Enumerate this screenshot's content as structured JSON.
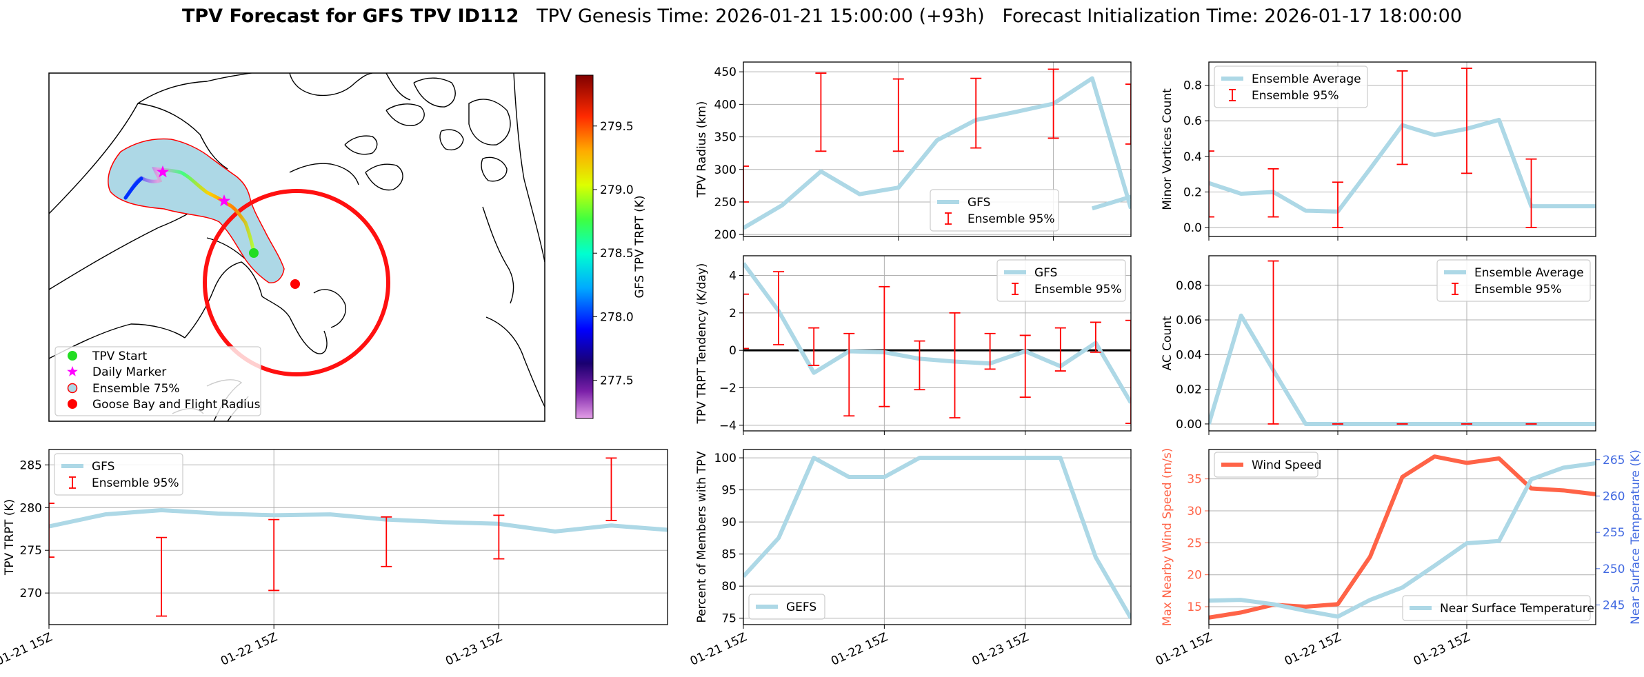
{
  "title": {
    "main": "TPV Forecast for GFS TPV ID112",
    "genesis": "TPV Genesis Time: 2026-01-21 15:00:00 (+93h)",
    "init": "Forecast Initialization Time: 2026-01-17 18:00:00"
  },
  "colors": {
    "gfs": "#add8e6",
    "ensemble": "#ff0000",
    "wind": "#ff6347",
    "temp_axis": "#4169e1",
    "ensemble_area": "#add8e6"
  },
  "map": {
    "colorbar": {
      "label": "GFS TPV TRPT (K)",
      "ticks": [
        "277.5",
        "278.0",
        "278.5",
        "279.0",
        "279.5"
      ],
      "range": [
        277.2,
        279.9
      ]
    },
    "legend": [
      {
        "label": "TPV Start",
        "icon": "green-circle"
      },
      {
        "label": "Daily Marker",
        "icon": "magenta-star"
      },
      {
        "label": "Ensemble 75%",
        "icon": "lightblue-circle-red-edge"
      },
      {
        "label": "Goose Bay and Flight Radius",
        "icon": "red-circle"
      }
    ]
  },
  "time_ticks": [
    "01-21 15Z",
    "01-22 15Z",
    "01-23 15Z"
  ],
  "chart_data": [
    {
      "id": "radius",
      "type": "line",
      "ylabel": "TPV Radius (km)",
      "ylim": [
        197,
        465
      ],
      "yticks": [
        "200",
        "250",
        "300",
        "350",
        "400",
        "450"
      ],
      "xlim": [
        0,
        60
      ],
      "x": [
        0,
        6,
        12,
        18,
        24,
        30,
        36,
        42,
        48,
        54,
        60
      ],
      "series": [
        {
          "name": "GFS",
          "values": [
            210,
            245,
            297,
            262,
            272,
            345,
            376,
            388,
            401,
            440,
            240
          ]
        }
      ],
      "extra_line": {
        "x": [
          54,
          60
        ],
        "values": [
          240,
          258
        ]
      },
      "errorbars": [
        {
          "x": 0,
          "lo": 250,
          "hi": 305
        },
        {
          "x": 12,
          "lo": 328,
          "hi": 448
        },
        {
          "x": 24,
          "lo": 328,
          "hi": 439
        },
        {
          "x": 36,
          "lo": 333,
          "hi": 440
        },
        {
          "x": 48,
          "lo": 348,
          "hi": 454
        },
        {
          "x": 60,
          "lo": 339,
          "hi": 431
        }
      ],
      "legend": [
        "GFS",
        "Ensemble 95%"
      ],
      "legend_pos": "lower-center"
    },
    {
      "id": "minor",
      "type": "line",
      "ylabel": "Minor Vortices Count",
      "ylim": [
        -0.05,
        0.93
      ],
      "yticks": [
        "0.0",
        "0.2",
        "0.4",
        "0.6",
        "0.8"
      ],
      "x": [
        0,
        6,
        12,
        18,
        24,
        30,
        36,
        42,
        48,
        54,
        60,
        66,
        72
      ],
      "series": [
        {
          "name": "Ensemble Average",
          "values": [
            0.25,
            0.19,
            0.2,
            0.095,
            0.09,
            0.33,
            0.575,
            0.52,
            0.555,
            0.605,
            0.12,
            0.12,
            0.12
          ]
        }
      ],
      "errorbars": [
        {
          "x": 0,
          "lo": 0.06,
          "hi": 0.43
        },
        {
          "x": 12,
          "lo": 0.06,
          "hi": 0.33
        },
        {
          "x": 24,
          "lo": 0.0,
          "hi": 0.255
        },
        {
          "x": 36,
          "lo": 0.355,
          "hi": 0.88
        },
        {
          "x": 48,
          "lo": 0.305,
          "hi": 0.895
        },
        {
          "x": 60,
          "lo": 0.0,
          "hi": 0.385
        }
      ],
      "legend": [
        "Ensemble Average",
        "Ensemble 95%"
      ],
      "legend_pos": "upper-left"
    },
    {
      "id": "tendency",
      "type": "line",
      "ylabel": "TPV TRPT Tendency (K/day)",
      "ylim": [
        -4.3,
        5.05
      ],
      "yticks": [
        "−4",
        "−2",
        "0",
        "2",
        "4"
      ],
      "x": [
        0,
        6,
        12,
        18,
        24,
        30,
        36,
        42,
        48,
        54,
        60,
        66
      ],
      "series": [
        {
          "name": "GFS",
          "values": [
            4.65,
            2.1,
            -1.2,
            -0.05,
            -0.1,
            -0.45,
            -0.6,
            -0.7,
            -0.05,
            -0.85,
            0.4,
            -2.8
          ]
        }
      ],
      "errorbars": [
        {
          "x": 0,
          "lo": 0.1,
          "hi": 3.0
        },
        {
          "x": 6,
          "lo": 0.3,
          "hi": 4.2
        },
        {
          "x": 12,
          "lo": -0.8,
          "hi": 1.2
        },
        {
          "x": 18,
          "lo": -3.5,
          "hi": 0.9
        },
        {
          "x": 24,
          "lo": -3.0,
          "hi": 3.4
        },
        {
          "x": 30,
          "lo": -2.1,
          "hi": 0.5
        },
        {
          "x": 36,
          "lo": -3.6,
          "hi": 2.0
        },
        {
          "x": 42,
          "lo": -1.0,
          "hi": 0.9
        },
        {
          "x": 48,
          "lo": -2.5,
          "hi": 0.8
        },
        {
          "x": 54,
          "lo": -1.1,
          "hi": 1.2
        },
        {
          "x": 60,
          "lo": -0.1,
          "hi": 1.5
        },
        {
          "x": 66,
          "lo": -3.9,
          "hi": 1.6
        }
      ],
      "zero_line": 0,
      "legend": [
        "GFS",
        "Ensemble 95%"
      ],
      "legend_pos": "upper-right"
    },
    {
      "id": "ac",
      "type": "line",
      "ylabel": "AC Count",
      "ylim": [
        -0.004,
        0.097
      ],
      "yticks": [
        "0.00",
        "0.02",
        "0.04",
        "0.06",
        "0.08"
      ],
      "x": [
        0,
        6,
        12,
        18,
        24,
        30,
        36,
        42,
        48,
        54,
        60,
        66,
        72
      ],
      "series": [
        {
          "name": "Ensemble Average",
          "values": [
            0,
            0.0625,
            0.031,
            0,
            0,
            0,
            0,
            0,
            0,
            0,
            0,
            0,
            0
          ]
        }
      ],
      "errorbars": [
        {
          "x": 12,
          "lo": 0.0,
          "hi": 0.094
        },
        {
          "x": 24,
          "lo": 0.0,
          "hi": 0.0
        },
        {
          "x": 36,
          "lo": 0.0,
          "hi": 0.0
        },
        {
          "x": 48,
          "lo": 0.0,
          "hi": 0.0
        },
        {
          "x": 60,
          "lo": 0.0,
          "hi": 0.0
        }
      ],
      "legend": [
        "Ensemble Average",
        "Ensemble 95%"
      ],
      "legend_pos": "upper-right"
    },
    {
      "id": "trpt",
      "type": "line",
      "ylabel": "TPV TRPT (K)",
      "ylim": [
        266.3,
        286.8
      ],
      "yticks": [
        "270",
        "275",
        "280",
        "285"
      ],
      "x": [
        0,
        6,
        12,
        18,
        24,
        30,
        36,
        42,
        48,
        54,
        60,
        66
      ],
      "series": [
        {
          "name": "GFS",
          "values": [
            277.8,
            279.2,
            279.7,
            279.3,
            279.1,
            279.2,
            278.6,
            278.3,
            278.1,
            277.2,
            277.9,
            277.4
          ]
        }
      ],
      "errorbars": [
        {
          "x": 0,
          "lo": 274.2,
          "hi": 280.5
        },
        {
          "x": 12,
          "lo": 267.3,
          "hi": 276.5
        },
        {
          "x": 24,
          "lo": 270.3,
          "hi": 278.6
        },
        {
          "x": 36,
          "lo": 273.1,
          "hi": 278.9
        },
        {
          "x": 48,
          "lo": 274.0,
          "hi": 279.1
        },
        {
          "x": 60,
          "lo": 278.5,
          "hi": 285.8
        }
      ],
      "legend": [
        "GFS",
        "Ensemble 95%"
      ],
      "legend_pos": "upper-left"
    },
    {
      "id": "members",
      "type": "line",
      "ylabel": "Percent of Members with TPV",
      "ylim": [
        74,
        101.3
      ],
      "yticks": [
        "75",
        "80",
        "85",
        "90",
        "95",
        "100"
      ],
      "x": [
        0,
        6,
        12,
        18,
        24,
        30,
        36,
        42,
        48,
        54,
        60,
        66
      ],
      "series": [
        {
          "name": "GEFS",
          "values": [
            81.5,
            87.5,
            100,
            97,
            97,
            100,
            100,
            100,
            100,
            100,
            84.5,
            75
          ]
        }
      ],
      "legend": [
        "GEFS"
      ],
      "legend_pos": "lower-left"
    },
    {
      "id": "wind",
      "type": "line",
      "ylabel": "Max Nearby Wind Speed (m/s)",
      "y2label": "Near Surface Temperature (K)",
      "ylim": [
        12.2,
        39.6
      ],
      "yticks": [
        "15",
        "20",
        "25",
        "30",
        "35"
      ],
      "y2lim": [
        242.3,
        266.4
      ],
      "y2ticks": [
        "245",
        "250",
        "255",
        "260",
        "265"
      ],
      "x": [
        0,
        6,
        12,
        18,
        24,
        30,
        36,
        42,
        48,
        54,
        60,
        66,
        72
      ],
      "series": [
        {
          "name": "Wind Speed",
          "axis": "left",
          "values": [
            13.3,
            14.1,
            15.3,
            15.0,
            15.4,
            22.8,
            35.3,
            38.5,
            37.5,
            38.2,
            33.5,
            33.2,
            32.6
          ]
        },
        {
          "name": "Near Surface Temperature",
          "axis": "right",
          "values": [
            245.6,
            245.7,
            245.1,
            244.2,
            243.4,
            245.7,
            247.4,
            250.4,
            253.5,
            253.8,
            262.3,
            263.9,
            264.5
          ]
        }
      ],
      "legend": [
        "Wind Speed",
        "Near Surface Temperature"
      ]
    }
  ]
}
